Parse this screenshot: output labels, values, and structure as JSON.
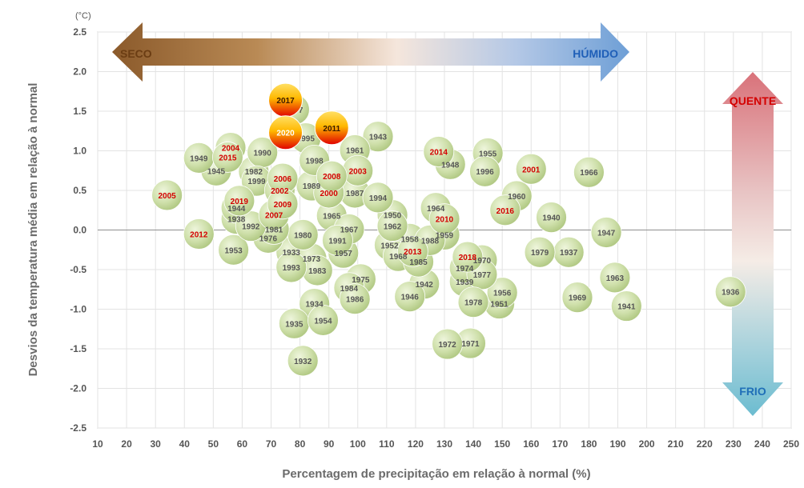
{
  "chart_data": {
    "type": "scatter",
    "title": "",
    "xlabel": "Percentagem de precipitação em relação à normal (%)",
    "ylabel": "Desvios da temperatura média em relação à normal",
    "yunit": "(°C)",
    "xlim": [
      10,
      250
    ],
    "ylim": [
      -2.5,
      2.5
    ],
    "xticks": [
      10,
      20,
      30,
      40,
      50,
      60,
      70,
      80,
      90,
      100,
      110,
      120,
      130,
      140,
      150,
      160,
      170,
      180,
      190,
      200,
      210,
      220,
      230,
      240,
      250
    ],
    "xtick_labels": [
      "10",
      "20",
      "30",
      "40",
      "50",
      "60",
      "70",
      "80",
      "90",
      "100",
      "110",
      "120",
      "130",
      "140",
      "150",
      "160",
      "170",
      "180",
      "190",
      "200",
      "210",
      "220",
      "230",
      "240",
      "250"
    ],
    "yticks": [
      2.5,
      2.0,
      1.5,
      1.0,
      0.5,
      0.0,
      -0.5,
      -1.0,
      -1.5,
      -2.0,
      -2.5
    ],
    "ytick_labels": [
      "2.5",
      "2.0",
      "1.5",
      "1.0",
      "0.5",
      "0.0",
      "-0.5",
      "-1.0",
      "-1.5",
      "-2.0",
      "-2.5"
    ],
    "grid": true,
    "annotations": {
      "dry": "SECO",
      "wet": "HÚMIDO",
      "hot": "QUENTE",
      "cold": "FRIO"
    },
    "colors": {
      "bubble": "#c9dca4",
      "recent_label": "#d40000",
      "old_label": "#555555",
      "highlight_top": "#ffd24d",
      "highlight_bottom": "#e01010"
    },
    "points": [
      {
        "year": "1932",
        "x": 81,
        "y": -1.65,
        "recent": false
      },
      {
        "year": "1933",
        "x": 77,
        "y": -0.28,
        "recent": false
      },
      {
        "year": "1934",
        "x": 85,
        "y": -0.93,
        "recent": false
      },
      {
        "year": "1935",
        "x": 78,
        "y": -1.18,
        "recent": false
      },
      {
        "year": "1936",
        "x": 229,
        "y": -0.78,
        "recent": false
      },
      {
        "year": "1937",
        "x": 173,
        "y": -0.28,
        "recent": false
      },
      {
        "year": "1938",
        "x": 58,
        "y": 0.14,
        "recent": false
      },
      {
        "year": "1939",
        "x": 137,
        "y": -0.65,
        "recent": false
      },
      {
        "year": "1940",
        "x": 167,
        "y": 0.16,
        "recent": false
      },
      {
        "year": "1941",
        "x": 193,
        "y": -0.96,
        "recent": false
      },
      {
        "year": "1942",
        "x": 123,
        "y": -0.68,
        "recent": false
      },
      {
        "year": "1943",
        "x": 107,
        "y": 1.18,
        "recent": false
      },
      {
        "year": "1944",
        "x": 58,
        "y": 0.28,
        "recent": false
      },
      {
        "year": "1945",
        "x": 51,
        "y": 0.75,
        "recent": false
      },
      {
        "year": "1946",
        "x": 118,
        "y": -0.84,
        "recent": false
      },
      {
        "year": "1947",
        "x": 186,
        "y": -0.03,
        "recent": false
      },
      {
        "year": "1948",
        "x": 132,
        "y": 0.83,
        "recent": false
      },
      {
        "year": "1949",
        "x": 45,
        "y": 0.91,
        "recent": false
      },
      {
        "year": "1950",
        "x": 112,
        "y": 0.19,
        "recent": false
      },
      {
        "year": "1951",
        "x": 149,
        "y": -0.93,
        "recent": false
      },
      {
        "year": "1952",
        "x": 111,
        "y": -0.19,
        "recent": false
      },
      {
        "year": "1953",
        "x": 57,
        "y": -0.25,
        "recent": false
      },
      {
        "year": "1954",
        "x": 88,
        "y": -1.14,
        "recent": false
      },
      {
        "year": "1955",
        "x": 145,
        "y": 0.97,
        "recent": false
      },
      {
        "year": "1956",
        "x": 150,
        "y": -0.79,
        "recent": false
      },
      {
        "year": "1957",
        "x": 95,
        "y": -0.29,
        "recent": false
      },
      {
        "year": "1958",
        "x": 118,
        "y": -0.11,
        "recent": false
      },
      {
        "year": "1959",
        "x": 130,
        "y": -0.06,
        "recent": false
      },
      {
        "year": "1960",
        "x": 155,
        "y": 0.43,
        "recent": false
      },
      {
        "year": "1961",
        "x": 99,
        "y": 1.01,
        "recent": false
      },
      {
        "year": "1962",
        "x": 112,
        "y": 0.05,
        "recent": false
      },
      {
        "year": "1963",
        "x": 189,
        "y": -0.6,
        "recent": false
      },
      {
        "year": "1964",
        "x": 127,
        "y": 0.28,
        "recent": false
      },
      {
        "year": "1965",
        "x": 91,
        "y": 0.18,
        "recent": false
      },
      {
        "year": "1966",
        "x": 180,
        "y": 0.73,
        "recent": false
      },
      {
        "year": "1967",
        "x": 97,
        "y": 0.01,
        "recent": false
      },
      {
        "year": "1968",
        "x": 114,
        "y": -0.33,
        "recent": false
      },
      {
        "year": "1969",
        "x": 176,
        "y": -0.85,
        "recent": false
      },
      {
        "year": "1970",
        "x": 143,
        "y": -0.38,
        "recent": false
      },
      {
        "year": "1971",
        "x": 139,
        "y": -1.43,
        "recent": false
      },
      {
        "year": "1972",
        "x": 131,
        "y": -1.44,
        "recent": false
      },
      {
        "year": "1973",
        "x": 84,
        "y": -0.36,
        "recent": false
      },
      {
        "year": "1974",
        "x": 137,
        "y": -0.48,
        "recent": false
      },
      {
        "year": "1975",
        "x": 101,
        "y": -0.62,
        "recent": false
      },
      {
        "year": "1976",
        "x": 69,
        "y": -0.1,
        "recent": false
      },
      {
        "year": "1977",
        "x": 143,
        "y": -0.56,
        "recent": false
      },
      {
        "year": "1978",
        "x": 140,
        "y": -0.91,
        "recent": false
      },
      {
        "year": "1979",
        "x": 163,
        "y": -0.28,
        "recent": false
      },
      {
        "year": "1980",
        "x": 81,
        "y": -0.06,
        "recent": false
      },
      {
        "year": "1981",
        "x": 71,
        "y": 0.01,
        "recent": false
      },
      {
        "year": "1982",
        "x": 64,
        "y": 0.74,
        "recent": false
      },
      {
        "year": "1983",
        "x": 86,
        "y": -0.51,
        "recent": false
      },
      {
        "year": "1984",
        "x": 97,
        "y": -0.73,
        "recent": false
      },
      {
        "year": "1985",
        "x": 121,
        "y": -0.4,
        "recent": false
      },
      {
        "year": "1986",
        "x": 99,
        "y": -0.87,
        "recent": false
      },
      {
        "year": "1987",
        "x": 99,
        "y": 0.47,
        "recent": false
      },
      {
        "year": "1988",
        "x": 125,
        "y": -0.13,
        "recent": false
      },
      {
        "year": "1989",
        "x": 84,
        "y": 0.56,
        "recent": false
      },
      {
        "year": "1990",
        "x": 67,
        "y": 0.98,
        "recent": false
      },
      {
        "year": "1991",
        "x": 93,
        "y": -0.13,
        "recent": false
      },
      {
        "year": "1992",
        "x": 63,
        "y": 0.05,
        "recent": false
      },
      {
        "year": "1993",
        "x": 77,
        "y": -0.47,
        "recent": false
      },
      {
        "year": "1994",
        "x": 107,
        "y": 0.41,
        "recent": false
      },
      {
        "year": "1995",
        "x": 82,
        "y": 1.16,
        "recent": false
      },
      {
        "year": "1996",
        "x": 144,
        "y": 0.74,
        "recent": false
      },
      {
        "year": "1997",
        "x": 78,
        "y": 1.52,
        "recent": false
      },
      {
        "year": "1998",
        "x": 85,
        "y": 0.88,
        "recent": false
      },
      {
        "year": "1999",
        "x": 65,
        "y": 0.62,
        "recent": false
      },
      {
        "year": "2000",
        "x": 90,
        "y": 0.47,
        "recent": true
      },
      {
        "year": "2001",
        "x": 160,
        "y": 0.77,
        "recent": true
      },
      {
        "year": "2002",
        "x": 73,
        "y": 0.5,
        "recent": true
      },
      {
        "year": "2003",
        "x": 100,
        "y": 0.75,
        "recent": true
      },
      {
        "year": "2004",
        "x": 56,
        "y": 1.04,
        "recent": true
      },
      {
        "year": "2005",
        "x": 34,
        "y": 0.44,
        "recent": true
      },
      {
        "year": "2006",
        "x": 74,
        "y": 0.65,
        "recent": true
      },
      {
        "year": "2007",
        "x": 71,
        "y": 0.19,
        "recent": true
      },
      {
        "year": "2008",
        "x": 91,
        "y": 0.68,
        "recent": true
      },
      {
        "year": "2009",
        "x": 74,
        "y": 0.33,
        "recent": true
      },
      {
        "year": "2010",
        "x": 130,
        "y": 0.14,
        "recent": true
      },
      {
        "year": "2011",
        "x": 91,
        "y": 1.29,
        "recent": true,
        "highlight": true
      },
      {
        "year": "2012",
        "x": 45,
        "y": -0.05,
        "recent": true
      },
      {
        "year": "2013",
        "x": 119,
        "y": -0.27,
        "recent": true
      },
      {
        "year": "2014",
        "x": 128,
        "y": 0.99,
        "recent": true
      },
      {
        "year": "2015",
        "x": 55,
        "y": 0.92,
        "recent": true
      },
      {
        "year": "2016",
        "x": 151,
        "y": 0.25,
        "recent": true
      },
      {
        "year": "2017",
        "x": 75,
        "y": 1.64,
        "recent": true,
        "highlight": true
      },
      {
        "year": "2018",
        "x": 138,
        "y": -0.34,
        "recent": true
      },
      {
        "year": "2019",
        "x": 59,
        "y": 0.37,
        "recent": true
      },
      {
        "year": "2020",
        "x": 75,
        "y": 1.23,
        "recent": true,
        "highlight": true
      }
    ]
  }
}
